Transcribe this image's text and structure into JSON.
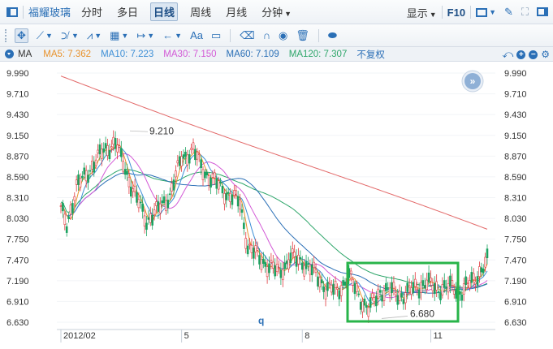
{
  "toolbar": {
    "stock_name": "福耀玻璃",
    "periods": [
      "分时",
      "多日",
      "日线",
      "周线",
      "月线",
      "分钟"
    ],
    "active_period": "日线",
    "display_label": "显示",
    "f10_label": "F10"
  },
  "drawing_tools": {
    "text_tool_label": "Aa"
  },
  "ma_bar": {
    "label": "MA",
    "items": [
      {
        "text": "MA5: 7.362",
        "color": "#e8922c"
      },
      {
        "text": "MA10: 7.223",
        "color": "#3d8fd6"
      },
      {
        "text": "MA30: 7.150",
        "color": "#d35ad6"
      },
      {
        "text": "MA60: 7.109",
        "color": "#2a6fb6"
      },
      {
        "text": "MA120: 7.307",
        "color": "#2ea66a"
      }
    ],
    "adjust_label": "不复权"
  },
  "chart_data": {
    "type": "candlestick",
    "y_ticks": [
      "9.990",
      "9.710",
      "9.430",
      "9.150",
      "8.870",
      "8.590",
      "8.310",
      "8.030",
      "7.750",
      "7.470",
      "7.190",
      "6.910",
      "6.630"
    ],
    "ylim": [
      6.63,
      9.99
    ],
    "x_ticks": [
      {
        "label": "2012/02",
        "x": 0
      },
      {
        "label": "5",
        "x": 62
      },
      {
        "label": "8",
        "x": 124
      },
      {
        "label": "11",
        "x": 190
      }
    ],
    "cursor_label": "q",
    "annotations": [
      {
        "text": "9.210",
        "kind": "high",
        "value": 9.21
      },
      {
        "text": "6.680",
        "kind": "low",
        "value": 6.68
      }
    ],
    "expand_button": "»",
    "colors": {
      "up": "#e0393e",
      "down": "#1aa260",
      "highlight_box": "#28b44a"
    }
  }
}
